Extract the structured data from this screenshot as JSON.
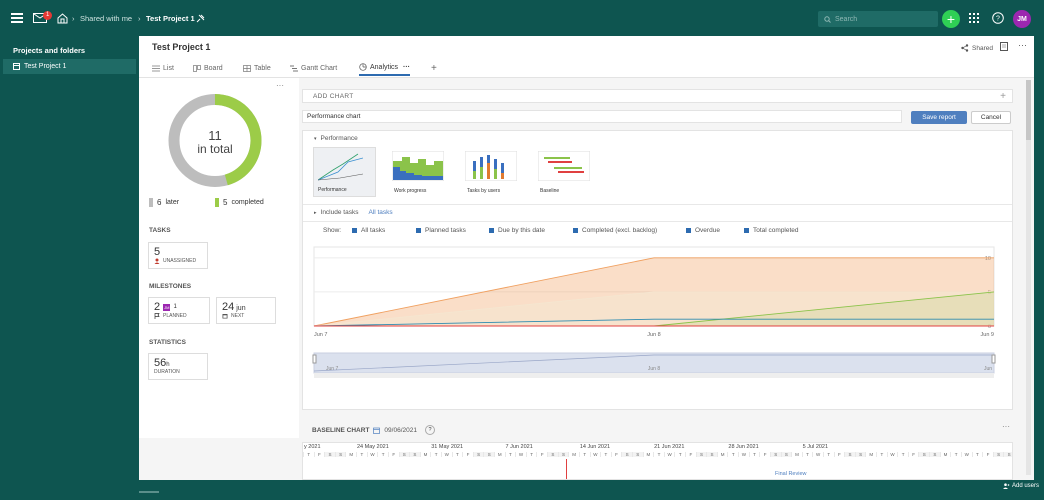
{
  "topbar": {
    "mail_badge": "1",
    "breadcrumb_shared": "Shared with me",
    "breadcrumb_project": "Test Project 1",
    "search_placeholder": "Search",
    "user_initials": "JM"
  },
  "sidebar": {
    "title": "Projects and folders",
    "items": [
      {
        "label": "Test Project 1"
      }
    ]
  },
  "project": {
    "title": "Test Project 1",
    "shared_label": "Shared",
    "tabs": [
      "List",
      "Board",
      "Table",
      "Gantt Chart",
      "Analytics"
    ]
  },
  "summary": {
    "total": "11",
    "total_label": "in total",
    "later_count": "6",
    "later_label": "later",
    "completed_count": "5",
    "completed_label": "completed",
    "tasks_heading": "TASKS",
    "unassigned_count": "5",
    "unassigned_label": "UNASSIGNED",
    "milestones_heading": "MILESTONES",
    "planned_count": "2",
    "planned_avatar": "JM",
    "planned_avatar_count": "1",
    "planned_label": "PLANNED",
    "next_day": "24",
    "next_month": "jun",
    "next_label": "NEXT",
    "statistics_heading": "STATISTICS",
    "duration_value": "56",
    "duration_unit": "h",
    "duration_label": "DURATION",
    "colors": {
      "later": "#bdbdbd",
      "completed": "#9ccc48"
    }
  },
  "analytics": {
    "add_chart_label": "ADD CHART",
    "chart_name_value": "Performance chart",
    "save_label": "Save report",
    "cancel_label": "Cancel",
    "performance_label": "Performance",
    "chart_types": [
      "Performance",
      "Work progress",
      "Tasks by users",
      "Baseline"
    ],
    "include_tasks_label": "Include tasks",
    "all_tasks_label": "All tasks",
    "show_label": "Show:",
    "show_options": [
      "All tasks",
      "Planned tasks",
      "Due by this date",
      "Completed (excl. backlog)",
      "Overdue",
      "Total completed"
    ]
  },
  "chart_data": {
    "type": "area",
    "x": [
      "Jun 7",
      "Jun 8",
      "Jun 9"
    ],
    "y_ticks": [
      "10",
      "5",
      "0"
    ],
    "ylim": [
      0,
      11
    ],
    "series": [
      {
        "values": [
          0,
          10,
          10
        ],
        "color": "#f0a060"
      },
      {
        "values": [
          0,
          5,
          5
        ],
        "color": "#f5e6d0"
      },
      {
        "values": [
          0,
          0,
          5
        ],
        "color": "#8bc34a"
      },
      {
        "values": [
          0,
          1,
          1
        ],
        "color": "#2d8bb0"
      },
      {
        "values": [
          0,
          0,
          0
        ],
        "color": "#e04040"
      }
    ],
    "navigator_labels": [
      "Jun 7",
      "Jun 8",
      "Jun"
    ]
  },
  "baseline": {
    "title": "BASELINE CHART",
    "date": "09/06/2021",
    "help": "?",
    "weeks": [
      "y 2021",
      "24 May 2021",
      "31 May 2021",
      "7 Jun 2021",
      "14 Jun 2021",
      "21 Jun 2021",
      "28 Jun 2021",
      "5 Jul 2021"
    ],
    "day_letters": [
      "T",
      "F",
      "S",
      "S",
      "M",
      "T",
      "W",
      "T",
      "F",
      "S",
      "S",
      "M",
      "T",
      "W",
      "T",
      "F",
      "S",
      "S",
      "M",
      "T",
      "W",
      "T",
      "F",
      "S",
      "S",
      "M",
      "T",
      "W",
      "T",
      "F",
      "S",
      "S",
      "M",
      "T",
      "W",
      "T",
      "F",
      "S",
      "S",
      "M",
      "T",
      "W",
      "T",
      "F",
      "S",
      "S",
      "M",
      "T",
      "W",
      "T",
      "F",
      "S",
      "S",
      "M",
      "T",
      "W",
      "T",
      "F",
      "S",
      "S",
      "M",
      "T",
      "W",
      "T",
      "F",
      "S",
      "S"
    ],
    "final_review": "Final Review"
  },
  "footer": {
    "add_users": "Add users"
  }
}
